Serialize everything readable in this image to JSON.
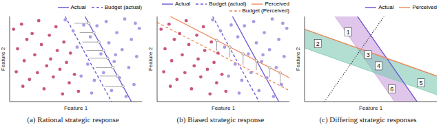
{
  "chart_data": [
    {
      "type": "scatter",
      "title": "(a) Rational strategic response",
      "x_label": "Feature 1",
      "y_label": "Feature 2",
      "xlim": [
        0,
        10
      ],
      "ylim": [
        0,
        10
      ],
      "tick_labels": false,
      "legend": "top",
      "series": [
        {
          "type": "scatter",
          "color": "#c8577f",
          "x": [
            0.3,
            0.6,
            0.9,
            1.1,
            1.3,
            1.5,
            1.7,
            1.9,
            2.1,
            2.2,
            2.4,
            2.6,
            2.8,
            3.0,
            3.1,
            3.3,
            3.5,
            3.6,
            3.8,
            4.0,
            4.1,
            4.3,
            4.5,
            4.6,
            4.9,
            5.2,
            1.0,
            0.5
          ],
          "y": [
            8.5,
            6.2,
            9.1,
            4.8,
            7.3,
            2.6,
            8.0,
            5.5,
            3.4,
            9.5,
            6.7,
            1.5,
            4.2,
            7.8,
            5.0,
            2.9,
            8.8,
            6.0,
            3.8,
            0.9,
            7.0,
            4.6,
            2.2,
            5.7,
            3.2,
            1.2,
            1.8,
            3.5
          ]
        },
        {
          "type": "scatter",
          "color": "#a99be3",
          "x": [
            4.2,
            4.8,
            5.1,
            5.6,
            5.9,
            6.1,
            6.4,
            6.6,
            6.9,
            7.1,
            7.3,
            7.5,
            7.7,
            7.9,
            8.1,
            8.3,
            8.5,
            8.7,
            8.8,
            9.0,
            9.2,
            9.4,
            9.6,
            9.8,
            6.2,
            5.4,
            8.0,
            9.5
          ],
          "y": [
            9.6,
            8.3,
            6.4,
            9.0,
            4.4,
            7.6,
            2.5,
            8.9,
            5.6,
            3.4,
            9.4,
            6.9,
            1.3,
            4.7,
            8.1,
            2.8,
            6.1,
            9.7,
            0.6,
            4.0,
            7.3,
            2.0,
            5.3,
            8.6,
            1.0,
            3.0,
            5.5,
            9.2
          ]
        },
        {
          "type": "arrow",
          "color": "#888888",
          "x": [
            4.9,
            5.98
          ],
          "y": [
            9.2,
            9.2
          ]
        },
        {
          "type": "arrow",
          "color": "#888888",
          "x": [
            5.3,
            6.37
          ],
          "y": [
            8.1,
            8.1
          ]
        },
        {
          "type": "arrow",
          "color": "#888888",
          "x": [
            5.5,
            6.75
          ],
          "y": [
            7.0,
            7.0
          ]
        },
        {
          "type": "arrow",
          "color": "#888888",
          "x": [
            5.8,
            7.1
          ],
          "y": [
            6.0,
            6.0
          ]
        },
        {
          "type": "arrow",
          "color": "#888888",
          "x": [
            6.0,
            7.42
          ],
          "y": [
            5.1,
            5.1
          ]
        },
        {
          "type": "arrow",
          "color": "#888888",
          "x": [
            6.5,
            7.8
          ],
          "y": [
            4.0,
            4.0
          ]
        },
        {
          "type": "arrow",
          "color": "#888888",
          "x": [
            6.8,
            8.15
          ],
          "y": [
            3.0,
            3.0
          ]
        },
        {
          "type": "arrow",
          "color": "#888888",
          "x": [
            7.2,
            8.57
          ],
          "y": [
            1.8,
            1.8
          ]
        },
        {
          "type": "line",
          "name": "Actual",
          "color": "#6a4fd4",
          "line_style": "solid",
          "x": [
            5.7,
            9.2
          ],
          "y": [
            10,
            0
          ]
        },
        {
          "type": "line",
          "name": "Budget (actual)",
          "color": "#6a4fd4",
          "line_style": "dashed",
          "x": [
            4.2,
            7.7
          ],
          "y": [
            10,
            0
          ]
        }
      ]
    },
    {
      "type": "scatter",
      "title": "(b) Biased strategic response",
      "x_label": "Feature 1",
      "y_label": "Feature 2",
      "xlim": [
        0,
        10
      ],
      "ylim": [
        0,
        10
      ],
      "tick_labels": false,
      "legend": "top",
      "series": [
        {
          "type": "scatter",
          "color": "#c8577f",
          "x": [
            0.3,
            0.6,
            0.9,
            1.1,
            1.3,
            1.5,
            1.7,
            1.9,
            2.1,
            2.2,
            2.4,
            2.6,
            2.8,
            3.0,
            3.1,
            3.3,
            3.5,
            3.6,
            3.8,
            4.0,
            4.1,
            4.3,
            4.5,
            4.6,
            4.9,
            5.2,
            1.0,
            0.5
          ],
          "y": [
            8.5,
            6.2,
            9.1,
            4.8,
            7.3,
            2.6,
            8.0,
            5.5,
            3.4,
            9.5,
            6.7,
            1.5,
            4.2,
            7.8,
            5.0,
            2.9,
            8.8,
            6.0,
            3.8,
            0.9,
            7.0,
            4.6,
            2.2,
            5.7,
            3.2,
            1.2,
            1.8,
            3.5
          ]
        },
        {
          "type": "scatter",
          "color": "#a99be3",
          "x": [
            4.2,
            4.8,
            5.1,
            5.6,
            5.9,
            6.1,
            6.4,
            6.6,
            6.9,
            7.1,
            7.3,
            7.5,
            7.7,
            7.9,
            8.1,
            8.3,
            8.5,
            8.7,
            8.8,
            9.0,
            9.2,
            9.4,
            9.6,
            9.8,
            6.2,
            5.4,
            8.0,
            9.5
          ],
          "y": [
            9.6,
            8.3,
            6.4,
            9.0,
            4.4,
            7.6,
            2.5,
            8.9,
            5.6,
            3.4,
            9.4,
            6.9,
            1.3,
            4.7,
            8.1,
            2.8,
            6.1,
            9.7,
            0.6,
            4.0,
            7.3,
            2.0,
            5.3,
            8.6,
            1.0,
            3.0,
            5.5,
            9.2
          ]
        },
        {
          "type": "arrow",
          "color": "#888888",
          "x": [
            4.5,
            4.5
          ],
          "y": [
            6.0,
            7.2
          ]
        },
        {
          "type": "arrow",
          "color": "#888888",
          "x": [
            5.5,
            5.5
          ],
          "y": [
            5.2,
            6.4
          ]
        },
        {
          "type": "arrow",
          "color": "#888888",
          "x": [
            6.5,
            6.5
          ],
          "y": [
            4.3,
            5.6
          ]
        },
        {
          "type": "arrow",
          "color": "#888888",
          "x": [
            7.5,
            7.5
          ],
          "y": [
            3.7,
            4.8
          ]
        },
        {
          "type": "arrow",
          "color": "#888888",
          "x": [
            8.5,
            8.5
          ],
          "y": [
            2.9,
            4.0
          ]
        },
        {
          "type": "arrow",
          "color": "#888888",
          "x": [
            9.3,
            9.3
          ],
          "y": [
            2.0,
            3.36
          ]
        },
        {
          "type": "line",
          "name": "Actual",
          "color": "#6a4fd4",
          "line_style": "solid",
          "x": [
            5.7,
            9.2
          ],
          "y": [
            10,
            0
          ]
        },
        {
          "type": "line",
          "name": "Budget (actual)",
          "color": "#6a4fd4",
          "line_style": "dashed",
          "x": [
            4.2,
            7.7
          ],
          "y": [
            10,
            0
          ]
        },
        {
          "type": "line",
          "name": "Perceived",
          "color": "#f0885a",
          "line_style": "solid",
          "x": [
            1,
            10
          ],
          "y": [
            10,
            2.8
          ]
        },
        {
          "type": "line",
          "name": "Budget (Perceived)",
          "color": "#f0885a",
          "line_style": "dashed",
          "x": [
            0,
            10
          ],
          "y": [
            9.3,
            1.3
          ]
        }
      ]
    },
    {
      "type": "region",
      "title": "(c) Differing strategic responses",
      "x_label": "Feature 1",
      "y_label": "Feature 2",
      "xlim": [
        0,
        10
      ],
      "ylim": [
        0,
        10
      ],
      "tick_labels": false,
      "legend": "top",
      "series": [
        {
          "type": "band",
          "color": "#c9a0dc",
          "x": [
            0,
            10
          ],
          "lower": [
            15.11,
            -7.11
          ],
          "upper": [
            18.89,
            -3.33
          ]
        },
        {
          "type": "band",
          "color": "#7fcab4",
          "x": [
            0,
            10
          ],
          "lower": [
            6.3,
            0.8
          ],
          "upper": [
            8.5,
            3.0
          ]
        },
        {
          "type": "line",
          "color": "#333333",
          "line_style": "dotted",
          "x": [
            1.5,
            6.0
          ],
          "y": [
            0,
            10
          ]
        },
        {
          "type": "line",
          "name": "Actual",
          "color": "#6a4fd4",
          "line_style": "solid",
          "x": [
            4.0,
            8.5
          ],
          "y": [
            10,
            0
          ]
        },
        {
          "type": "line",
          "name": "Perceived",
          "color": "#f0885a",
          "line_style": "solid",
          "x": [
            0,
            10
          ],
          "y": [
            8.5,
            3.0
          ]
        }
      ],
      "annotations": [
        {
          "text": "1",
          "x": 3.3,
          "y": 8.2
        },
        {
          "text": "2",
          "x": 1.0,
          "y": 6.8
        },
        {
          "text": "3",
          "x": 4.8,
          "y": 5.5
        },
        {
          "text": "4",
          "x": 5.6,
          "y": 4.2
        },
        {
          "text": "5",
          "x": 8.8,
          "y": 2.2
        },
        {
          "text": "6",
          "x": 6.6,
          "y": 1.5
        }
      ]
    }
  ]
}
